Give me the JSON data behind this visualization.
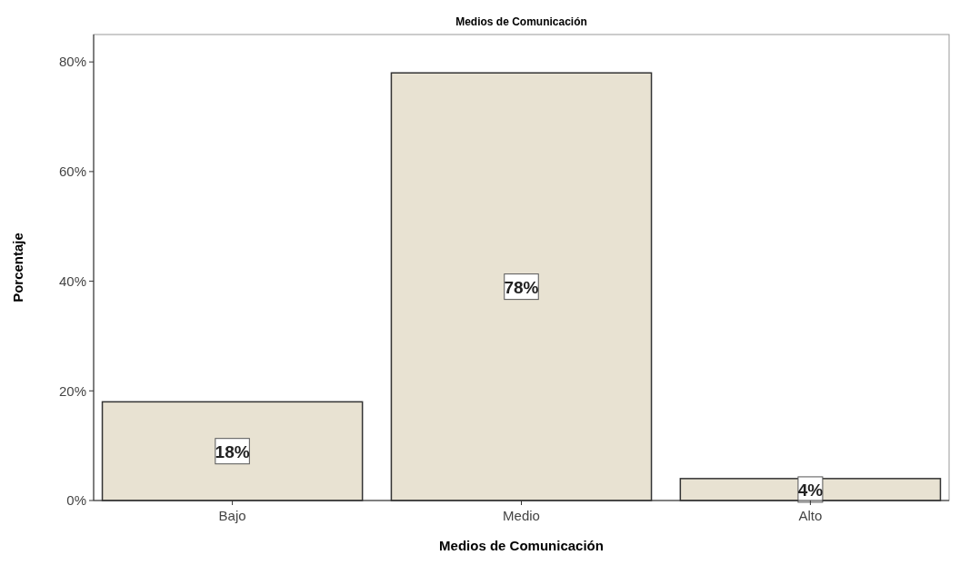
{
  "chart_data": {
    "type": "bar",
    "title": "Medios de Comunicación",
    "xlabel": "Medios de Comunicación",
    "ylabel": "Porcentaje",
    "categories": [
      "Bajo",
      "Medio",
      "Alto"
    ],
    "values": [
      18,
      78,
      4
    ],
    "color": "#e8e2d2",
    "value_labels": [
      "18%",
      "78%",
      "4%"
    ],
    "ylim": [
      0,
      85
    ],
    "yticks": [
      {
        "value": 0,
        "label": "0%"
      },
      {
        "value": 20,
        "label": "20%"
      },
      {
        "value": 40,
        "label": "40%"
      },
      {
        "value": 60,
        "label": "60%"
      },
      {
        "value": 80,
        "label": "80%"
      }
    ],
    "grid": false
  }
}
